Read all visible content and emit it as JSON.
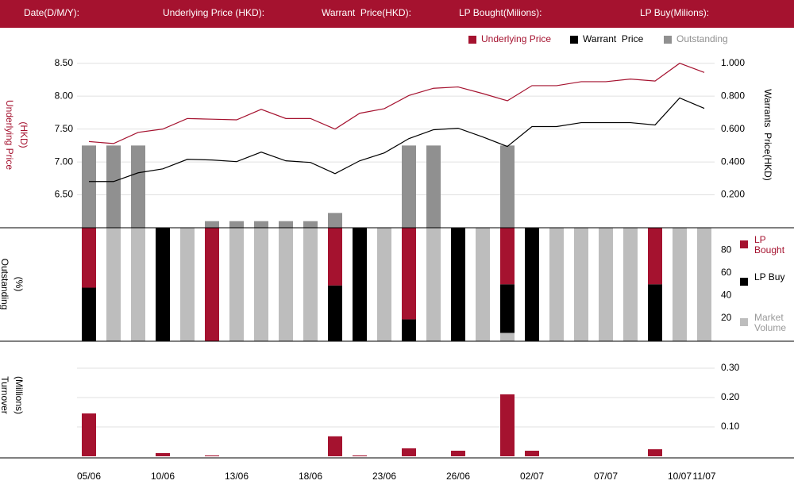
{
  "header": {
    "fields": [
      "Date(D/M/Y):",
      "Underlying Price (HKD):",
      "Warrant  Price(HKD):",
      "LP Bought(Milions):",
      "LP Buy(Milions):"
    ]
  },
  "chart_data": [
    {
      "type": "line",
      "ylabel": [
        "Underlying Price",
        "(HKD)"
      ],
      "y2label": "Warrants  Price(HKD)",
      "ylim": [
        6.0,
        8.75
      ],
      "yticks": [
        {
          "value": 6.5,
          "label": "6.50"
        },
        {
          "value": 7.0,
          "label": "7.00"
        },
        {
          "value": 7.5,
          "label": "7.50"
        },
        {
          "value": 8.0,
          "label": "8.00"
        },
        {
          "value": 8.5,
          "label": "8.50"
        }
      ],
      "y2lim": [
        0,
        1.1
      ],
      "y2ticks": [
        {
          "value": 0.2,
          "label": "0.200"
        },
        {
          "value": 0.4,
          "label": "0.400"
        },
        {
          "value": 0.6,
          "label": "0.600"
        },
        {
          "value": 0.8,
          "label": "0.800"
        },
        {
          "value": 1.0,
          "label": "1.000"
        }
      ],
      "grid": true,
      "series": [
        {
          "name": "Underlying Price",
          "color": "#a5122f",
          "values": [
            7.31,
            7.28,
            7.45,
            7.5,
            7.66,
            7.65,
            7.64,
            7.8,
            7.66,
            7.66,
            7.5,
            7.74,
            7.81,
            8.01,
            8.12,
            8.14,
            8.04,
            7.93,
            8.16,
            8.16,
            8.22,
            8.22,
            8.26,
            8.23,
            8.5,
            8.36
          ]
        },
        {
          "name": "Warrant  Price",
          "color": "#000000",
          "axis": "y2",
          "values": [
            0.281,
            0.281,
            0.334,
            0.358,
            0.416,
            0.412,
            0.402,
            0.46,
            0.407,
            0.397,
            0.329,
            0.407,
            0.455,
            0.542,
            0.596,
            0.605,
            0.552,
            0.494,
            0.615,
            0.615,
            0.639,
            0.639,
            0.639,
            0.625,
            0.789,
            0.726
          ]
        },
        {
          "name": "Outstanding",
          "color": "#909090",
          "axis": "y2",
          "type": "bar",
          "values": [
            0.5,
            0.5,
            0.5,
            null,
            null,
            0.04,
            0.04,
            0.04,
            0.04,
            0.04,
            0.09,
            null,
            null,
            0.5,
            0.5,
            null,
            null,
            0.5,
            null,
            null,
            null,
            null,
            null,
            null,
            null,
            null
          ]
        }
      ]
    },
    {
      "type": "stacked_bar",
      "ylabel": [
        "Outstanding",
        "(%)"
      ],
      "ylim": [
        0,
        100
      ],
      "yticks": [
        20,
        40,
        60,
        80
      ],
      "series": [
        {
          "name": "LP Bought",
          "color": "#a5122f",
          "values": [
            53,
            0,
            0,
            0,
            0,
            100,
            0,
            0,
            0,
            0,
            51,
            0,
            0,
            81,
            0,
            0,
            0,
            50,
            0,
            0,
            0,
            0,
            0,
            50,
            0,
            0
          ]
        },
        {
          "name": "LP Buy",
          "color": "#000000",
          "values": [
            47,
            0,
            0,
            100,
            0,
            0,
            0,
            0,
            0,
            0,
            49,
            100,
            0,
            19,
            0,
            100,
            0,
            43,
            100,
            0,
            0,
            0,
            0,
            50,
            0,
            0
          ]
        },
        {
          "name": "Market Volume",
          "color": "#bdbdbd",
          "values": [
            0,
            100,
            100,
            0,
            100,
            0,
            100,
            100,
            100,
            100,
            0,
            0,
            100,
            0,
            100,
            0,
            100,
            7,
            0,
            100,
            100,
            100,
            100,
            0,
            100,
            100
          ]
        }
      ]
    },
    {
      "type": "bar",
      "ylabel": [
        "Turnover",
        "(Millions)"
      ],
      "ylim": [
        0,
        0.4
      ],
      "yticks": [
        {
          "value": 0.1,
          "label": "0.10"
        },
        {
          "value": 0.2,
          "label": "0.20"
        },
        {
          "value": 0.3,
          "label": "0.30"
        }
      ],
      "grid": true,
      "color": "#a5122f",
      "categories": [
        "05/06",
        null,
        null,
        "10/06",
        null,
        null,
        "13/06",
        null,
        null,
        "18/06",
        null,
        null,
        "23/06",
        null,
        null,
        "26/06",
        null,
        null,
        "02/07",
        null,
        null,
        "07/07",
        null,
        null,
        "10/07",
        "11/07"
      ],
      "values": [
        0.146,
        0,
        0,
        0.011,
        0,
        0.003,
        0,
        0,
        0,
        0,
        0.068,
        0.003,
        0,
        0.027,
        0,
        0.019,
        0,
        0.211,
        0.019,
        0,
        0,
        0,
        0,
        0.024,
        0,
        0
      ]
    }
  ]
}
